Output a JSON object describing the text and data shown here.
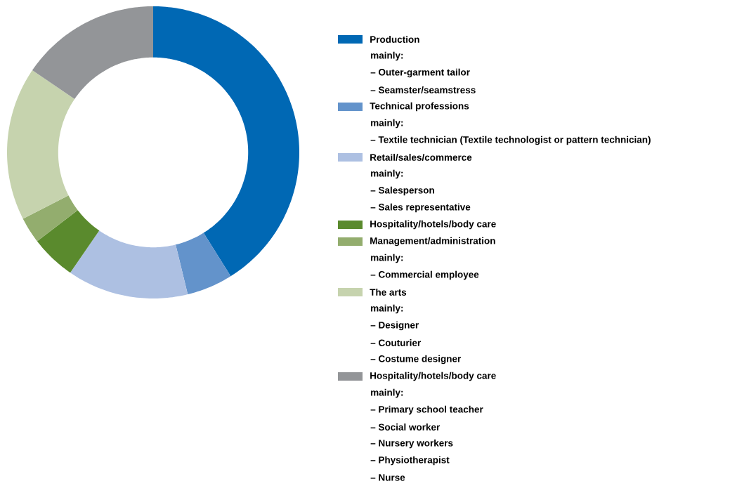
{
  "chart_data": {
    "type": "donut",
    "categories": [
      "Production",
      "Technical professions",
      "Retail/sales/commerce",
      "Hospitality/hotels/body care",
      "Management/administration",
      "The arts",
      "Hospitality/hotels/body care"
    ],
    "values": [
      41.1,
      5.1,
      13.4,
      5.0,
      2.9,
      17.0,
      15.5
    ],
    "colors": [
      "#0068b4",
      "#6393cb",
      "#adc0e2",
      "#5a8a2d",
      "#93ad6e",
      "#c6d3ae",
      "#939598"
    ],
    "legend": "right",
    "annotations": [
      [
        "mainly:",
        "– Outer-garment tailor",
        "– Seamster/seamstress"
      ],
      [
        "mainly:",
        "– Textile technician (Textile technologist or pattern technician)"
      ],
      [
        "mainly:",
        "– Salesperson",
        "– Sales representative"
      ],
      null,
      [
        "mainly:",
        "– Commercial employee"
      ],
      [
        "mainly:",
        "– Designer",
        "– Couturier",
        "– Costume designer"
      ],
      [
        "mainly:",
        "– Primary school teacher",
        "– Social worker",
        "– Nursery workers",
        "– Physiotherapist",
        "– Nurse"
      ]
    ]
  }
}
